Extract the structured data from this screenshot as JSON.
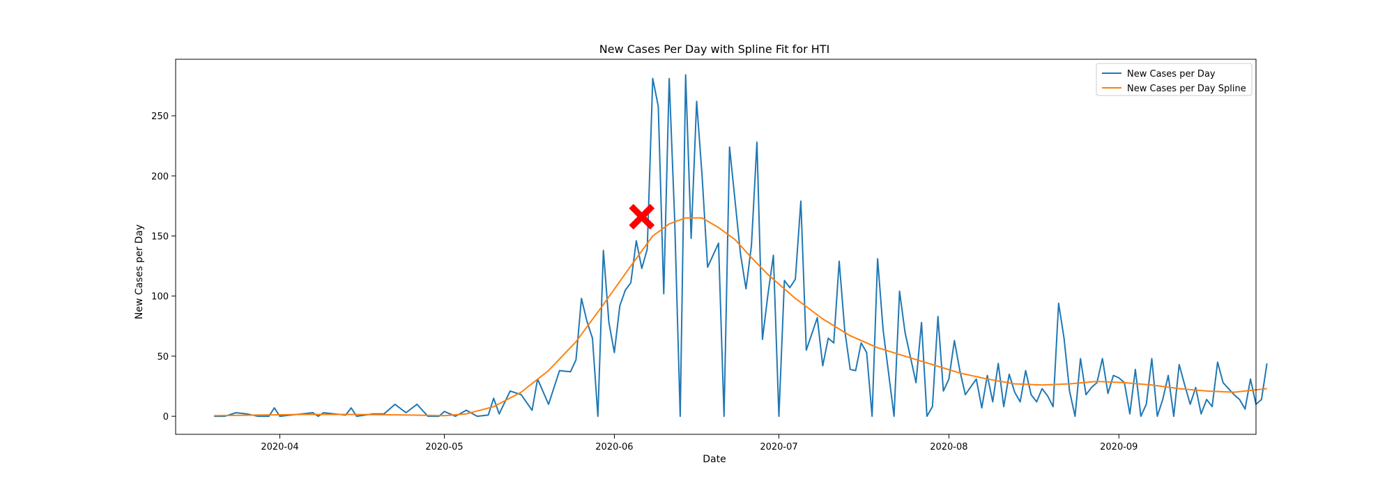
{
  "chart_data": {
    "type": "line",
    "title": "New Cases Per Day with Spline Fit for HTI",
    "xlabel": "Date",
    "ylabel": "New Cases per Day",
    "x_axis_type": "date",
    "x_ticks": [
      "2020-04",
      "2020-05",
      "2020-06",
      "2020-07",
      "2020-08",
      "2020-09"
    ],
    "y_ticks": [
      0,
      50,
      100,
      150,
      200,
      250
    ],
    "xlim": [
      "2020-03-13",
      "2020-09-26"
    ],
    "ylim": [
      -15,
      297
    ],
    "legend_position": "top-right",
    "grid": false,
    "peak_marker": {
      "date": "2020-06-06",
      "value": 166,
      "color": "#ff0000",
      "shape": "x"
    },
    "series": [
      {
        "name": "New Cases per Day",
        "color": "#1f77b4",
        "points": [
          [
            "2020-03-20",
            0
          ],
          [
            "2020-03-22",
            0
          ],
          [
            "2020-03-24",
            3
          ],
          [
            "2020-03-26",
            2
          ],
          [
            "2020-03-28",
            0
          ],
          [
            "2020-03-30",
            0
          ],
          [
            "2020-03-31",
            7
          ],
          [
            "2020-04-01",
            0
          ],
          [
            "2020-04-03",
            1
          ],
          [
            "2020-04-05",
            2
          ],
          [
            "2020-04-07",
            3
          ],
          [
            "2020-04-08",
            0
          ],
          [
            "2020-04-09",
            3
          ],
          [
            "2020-04-11",
            2
          ],
          [
            "2020-04-13",
            1
          ],
          [
            "2020-04-14",
            7
          ],
          [
            "2020-04-15",
            0
          ],
          [
            "2020-04-18",
            2
          ],
          [
            "2020-04-20",
            2
          ],
          [
            "2020-04-22",
            10
          ],
          [
            "2020-04-24",
            3
          ],
          [
            "2020-04-26",
            10
          ],
          [
            "2020-04-28",
            0
          ],
          [
            "2020-04-30",
            0
          ],
          [
            "2020-05-01",
            4
          ],
          [
            "2020-05-03",
            0
          ],
          [
            "2020-05-05",
            5
          ],
          [
            "2020-05-07",
            0
          ],
          [
            "2020-05-09",
            1
          ],
          [
            "2020-05-10",
            15
          ],
          [
            "2020-05-11",
            2
          ],
          [
            "2020-05-13",
            21
          ],
          [
            "2020-05-15",
            18
          ],
          [
            "2020-05-17",
            5
          ],
          [
            "2020-05-18",
            31
          ],
          [
            "2020-05-20",
            10
          ],
          [
            "2020-05-22",
            38
          ],
          [
            "2020-05-24",
            37
          ],
          [
            "2020-05-25",
            47
          ],
          [
            "2020-05-26",
            98
          ],
          [
            "2020-05-27",
            79
          ],
          [
            "2020-05-28",
            65
          ],
          [
            "2020-05-29",
            0
          ],
          [
            "2020-05-30",
            138
          ],
          [
            "2020-05-31",
            78
          ],
          [
            "2020-06-01",
            53
          ],
          [
            "2020-06-02",
            92
          ],
          [
            "2020-06-03",
            105
          ],
          [
            "2020-06-04",
            111
          ],
          [
            "2020-06-05",
            146
          ],
          [
            "2020-06-06",
            123
          ],
          [
            "2020-06-07",
            139
          ],
          [
            "2020-06-08",
            281
          ],
          [
            "2020-06-09",
            258
          ],
          [
            "2020-06-10",
            102
          ],
          [
            "2020-06-11",
            281
          ],
          [
            "2020-06-12",
            163
          ],
          [
            "2020-06-13",
            0
          ],
          [
            "2020-06-14",
            284
          ],
          [
            "2020-06-15",
            148
          ],
          [
            "2020-06-16",
            262
          ],
          [
            "2020-06-17",
            200
          ],
          [
            "2020-06-18",
            124
          ],
          [
            "2020-06-20",
            144
          ],
          [
            "2020-06-21",
            0
          ],
          [
            "2020-06-22",
            224
          ],
          [
            "2020-06-24",
            135
          ],
          [
            "2020-06-25",
            106
          ],
          [
            "2020-06-26",
            142
          ],
          [
            "2020-06-27",
            228
          ],
          [
            "2020-06-28",
            64
          ],
          [
            "2020-06-29",
            101
          ],
          [
            "2020-06-30",
            134
          ],
          [
            "2020-07-01",
            0
          ],
          [
            "2020-07-02",
            113
          ],
          [
            "2020-07-03",
            107
          ],
          [
            "2020-07-04",
            114
          ],
          [
            "2020-07-05",
            179
          ],
          [
            "2020-07-06",
            55
          ],
          [
            "2020-07-08",
            82
          ],
          [
            "2020-07-09",
            42
          ],
          [
            "2020-07-10",
            65
          ],
          [
            "2020-07-11",
            61
          ],
          [
            "2020-07-12",
            129
          ],
          [
            "2020-07-13",
            72
          ],
          [
            "2020-07-14",
            39
          ],
          [
            "2020-07-15",
            38
          ],
          [
            "2020-07-16",
            61
          ],
          [
            "2020-07-17",
            53
          ],
          [
            "2020-07-18",
            0
          ],
          [
            "2020-07-19",
            131
          ],
          [
            "2020-07-20",
            72
          ],
          [
            "2020-07-22",
            0
          ],
          [
            "2020-07-23",
            104
          ],
          [
            "2020-07-24",
            70
          ],
          [
            "2020-07-26",
            28
          ],
          [
            "2020-07-27",
            78
          ],
          [
            "2020-07-28",
            0
          ],
          [
            "2020-07-29",
            8
          ],
          [
            "2020-07-30",
            83
          ],
          [
            "2020-07-31",
            21
          ],
          [
            "2020-08-01",
            31
          ],
          [
            "2020-08-02",
            63
          ],
          [
            "2020-08-03",
            38
          ],
          [
            "2020-08-04",
            18
          ],
          [
            "2020-08-06",
            31
          ],
          [
            "2020-08-07",
            7
          ],
          [
            "2020-08-08",
            34
          ],
          [
            "2020-08-09",
            12
          ],
          [
            "2020-08-10",
            44
          ],
          [
            "2020-08-11",
            8
          ],
          [
            "2020-08-12",
            35
          ],
          [
            "2020-08-13",
            20
          ],
          [
            "2020-08-14",
            12
          ],
          [
            "2020-08-15",
            38
          ],
          [
            "2020-08-16",
            18
          ],
          [
            "2020-08-17",
            12
          ],
          [
            "2020-08-18",
            23
          ],
          [
            "2020-08-19",
            17
          ],
          [
            "2020-08-20",
            8
          ],
          [
            "2020-08-21",
            94
          ],
          [
            "2020-08-22",
            65
          ],
          [
            "2020-08-23",
            21
          ],
          [
            "2020-08-24",
            0
          ],
          [
            "2020-08-25",
            48
          ],
          [
            "2020-08-26",
            18
          ],
          [
            "2020-08-27",
            24
          ],
          [
            "2020-08-28",
            28
          ],
          [
            "2020-08-29",
            48
          ],
          [
            "2020-08-30",
            19
          ],
          [
            "2020-08-31",
            34
          ],
          [
            "2020-09-01",
            32
          ],
          [
            "2020-09-02",
            28
          ],
          [
            "2020-09-03",
            2
          ],
          [
            "2020-09-04",
            39
          ],
          [
            "2020-09-05",
            0
          ],
          [
            "2020-09-06",
            10
          ],
          [
            "2020-09-07",
            48
          ],
          [
            "2020-09-08",
            0
          ],
          [
            "2020-09-09",
            14
          ],
          [
            "2020-09-10",
            34
          ],
          [
            "2020-09-11",
            0
          ],
          [
            "2020-09-12",
            43
          ],
          [
            "2020-09-13",
            26
          ],
          [
            "2020-09-14",
            10
          ],
          [
            "2020-09-15",
            24
          ],
          [
            "2020-09-16",
            2
          ],
          [
            "2020-09-17",
            14
          ],
          [
            "2020-09-18",
            8
          ],
          [
            "2020-09-19",
            45
          ],
          [
            "2020-09-20",
            28
          ],
          [
            "2020-09-22",
            18
          ],
          [
            "2020-09-23",
            14
          ],
          [
            "2020-09-24",
            6
          ],
          [
            "2020-09-25",
            31
          ],
          [
            "2020-09-26",
            10
          ],
          [
            "2020-09-27",
            14
          ],
          [
            "2020-09-28",
            44
          ]
        ]
      },
      {
        "name": "New Cases per Day Spline",
        "color": "#ff7f0e",
        "points": [
          [
            "2020-03-20",
            0.5
          ],
          [
            "2020-03-28",
            1
          ],
          [
            "2020-04-05",
            1.5
          ],
          [
            "2020-04-15",
            1.5
          ],
          [
            "2020-04-25",
            1
          ],
          [
            "2020-05-01",
            0.5
          ],
          [
            "2020-05-05",
            2
          ],
          [
            "2020-05-10",
            8
          ],
          [
            "2020-05-15",
            20
          ],
          [
            "2020-05-20",
            38
          ],
          [
            "2020-05-25",
            62
          ],
          [
            "2020-05-30",
            93
          ],
          [
            "2020-06-04",
            125
          ],
          [
            "2020-06-08",
            150
          ],
          [
            "2020-06-11",
            160
          ],
          [
            "2020-06-14",
            165
          ],
          [
            "2020-06-17",
            165
          ],
          [
            "2020-06-20",
            157
          ],
          [
            "2020-06-23",
            147
          ],
          [
            "2020-06-26",
            132
          ],
          [
            "2020-06-29",
            118
          ],
          [
            "2020-07-04",
            98
          ],
          [
            "2020-07-09",
            81
          ],
          [
            "2020-07-14",
            67
          ],
          [
            "2020-07-19",
            57
          ],
          [
            "2020-07-24",
            50
          ],
          [
            "2020-07-29",
            43
          ],
          [
            "2020-08-03",
            36
          ],
          [
            "2020-08-08",
            31
          ],
          [
            "2020-08-13",
            27
          ],
          [
            "2020-08-18",
            26
          ],
          [
            "2020-08-23",
            27
          ],
          [
            "2020-08-28",
            29
          ],
          [
            "2020-09-02",
            28
          ],
          [
            "2020-09-07",
            26
          ],
          [
            "2020-09-12",
            23
          ],
          [
            "2020-09-17",
            21
          ],
          [
            "2020-09-22",
            20
          ],
          [
            "2020-09-28",
            23
          ]
        ]
      }
    ]
  }
}
